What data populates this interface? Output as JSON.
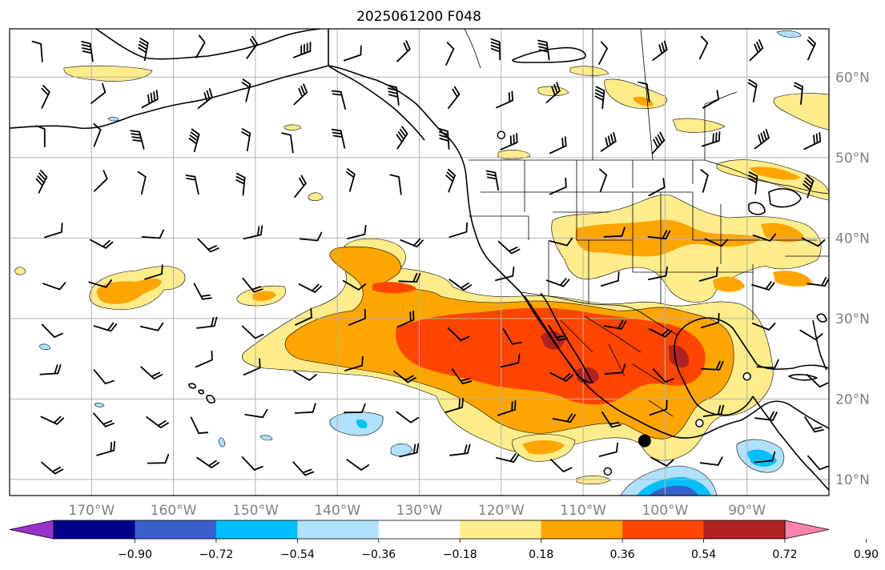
{
  "title": "2025061200 F048",
  "map": {
    "lon_range": [
      -180,
      -80
    ],
    "lat_range": [
      8,
      66
    ],
    "lon_ticks": [
      -170,
      -160,
      -150,
      -140,
      -130,
      -120,
      -110,
      -100,
      -90
    ],
    "lon_labels": [
      "170°W",
      "160°W",
      "150°W",
      "140°W",
      "130°W",
      "120°W",
      "110°W",
      "100°W",
      "90°W"
    ],
    "lat_ticks": [
      10,
      20,
      30,
      40,
      50,
      60
    ],
    "lat_labels": [
      "10°N",
      "20°N",
      "30°N",
      "40°N",
      "50°N",
      "60°N"
    ],
    "grid": true
  },
  "colorbar": {
    "levels": [
      -1.08,
      -0.9,
      -0.72,
      -0.54,
      -0.36,
      -0.18,
      0.18,
      0.36,
      0.54,
      0.72,
      0.9,
      1.08
    ],
    "colors": [
      "#9932cc",
      "#00008b",
      "#3a5fcd",
      "#00bfff",
      "#b0e2ff",
      "#ffffff",
      "#ffec8b",
      "#ffa500",
      "#ff4500",
      "#b22222",
      "#ff82ab"
    ],
    "labels": [
      "−0.90",
      "−0.72",
      "−0.54",
      "−0.36",
      "−0.18",
      "0.18",
      "0.36",
      "0.54",
      "0.72",
      "0.90"
    ],
    "extend": "both"
  },
  "fill_colors": {
    "light_yellow": "#ffec8b",
    "orange": "#ffa500",
    "red_orange": "#ff4500",
    "dark_red": "#b22222",
    "light_blue": "#b0e2ff",
    "sky_blue": "#00bfff",
    "royal_blue": "#3a5fcd"
  },
  "station_markers": [
    {
      "lon": -120.0,
      "lat": 52.8,
      "type": "open-circle"
    },
    {
      "lon": -95.8,
      "lat": 17.0,
      "type": "open-circle"
    },
    {
      "lon": -90.0,
      "lat": 22.8,
      "type": "open-circle"
    },
    {
      "lon": -107.0,
      "lat": 11.0,
      "type": "open-circle"
    },
    {
      "lon": -102.5,
      "lat": 14.8,
      "type": "filled-circle"
    }
  ]
}
